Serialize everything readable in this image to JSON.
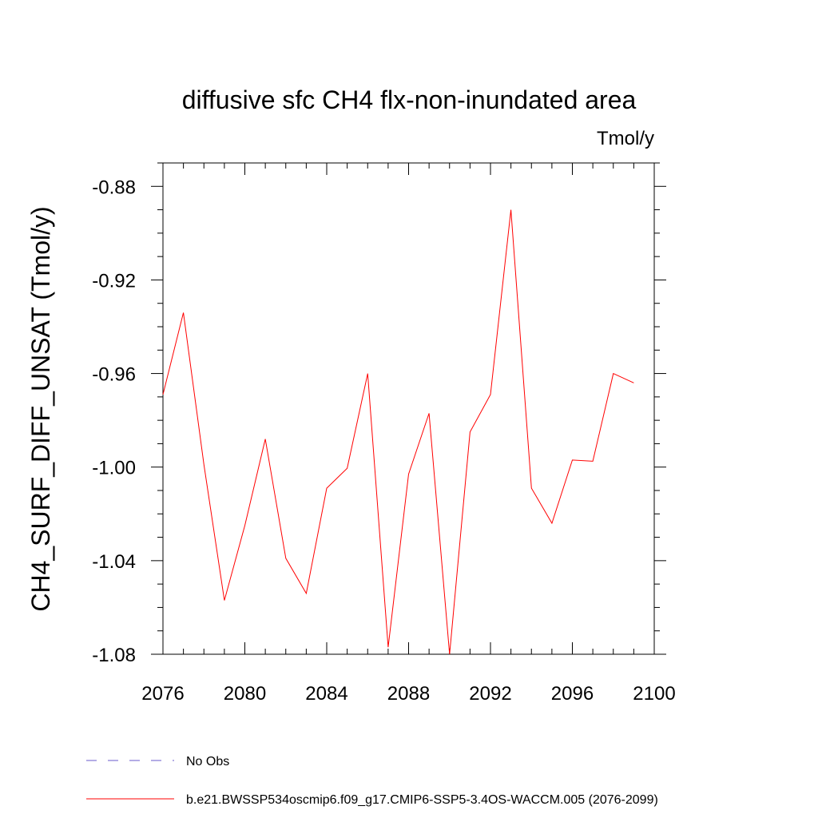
{
  "chart_data": {
    "type": "line",
    "title": "diffusive sfc CH4 flx-non-inundated area",
    "units": "Tmol/y",
    "xlabel": "",
    "ylabel": "CH4_SURF_DIFF_UNSAT  (Tmol/y)",
    "xlim": [
      2076,
      2100
    ],
    "ylim": [
      -1.08,
      -0.87
    ],
    "x_ticks": [
      "2076",
      "2080",
      "2084",
      "2088",
      "2092",
      "2096",
      "2100"
    ],
    "y_ticks": [
      "-0.88",
      "-0.92",
      "-0.96",
      "-1.00",
      "-1.04",
      "-1.08"
    ],
    "series": [
      {
        "name": "b.e21.BWSSP534oscmip6.f09_g17.CMIP6-SSP5-3.4OS-WACCM.005 (2076-2099)",
        "color": "#ff0000",
        "x": [
          2076,
          2077,
          2078,
          2079,
          2080,
          2081,
          2082,
          2083,
          2084,
          2085,
          2086,
          2087,
          2088,
          2089,
          2090,
          2091,
          2092,
          2093,
          2094,
          2095,
          2096,
          2097,
          2098,
          2099
        ],
        "values": [
          -0.969,
          -0.934,
          -0.999,
          -1.057,
          -1.025,
          -0.988,
          -1.039,
          -1.054,
          -1.009,
          -1.0005,
          -0.96,
          -1.077,
          -1.003,
          -0.977,
          -1.08,
          -0.985,
          -0.969,
          -0.89,
          -1.009,
          -1.024,
          -0.997,
          -0.9975,
          -0.96,
          -0.964
        ]
      }
    ],
    "legend": [
      {
        "label": "No Obs",
        "color": "#6a5acd",
        "style": "dashed"
      },
      {
        "label": "b.e21.BWSSP534oscmip6.f09_g17.CMIP6-SSP5-3.4OS-WACCM.005 (2076-2099)",
        "color": "#ff0000",
        "style": "solid"
      }
    ]
  }
}
